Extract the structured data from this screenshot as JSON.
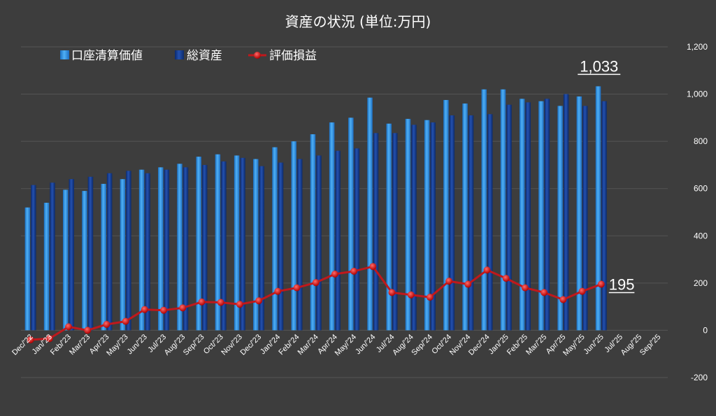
{
  "colors": {
    "background": "#3d3d3d",
    "gridline": "#555555",
    "account_value": "#2f8fe0",
    "total_assets": "#123a8c",
    "gain_loss": "#c0181c",
    "negative_tick": "#ff2a2a"
  },
  "chart_data": {
    "type": "bar",
    "title": "資産の状況 (単位:万円)",
    "ylim": [
      -200,
      1200
    ],
    "yticks": [
      "-200",
      "0",
      "200",
      "400",
      "600",
      "800",
      "1,000",
      "1,200"
    ],
    "grid": true,
    "legend_position": "top-left",
    "categories": [
      "Dec/'22",
      "Jan/'23",
      "Feb/'23",
      "Mar/'23",
      "Apr/'23",
      "May/'23",
      "Jun/'23",
      "Jul/'23",
      "Aug/'23",
      "Sep/'23",
      "Oct/'23",
      "Nov/'23",
      "Dec/'23",
      "Jan/'24",
      "Feb/'24",
      "Mar/'24",
      "Apr/'24",
      "May/'24",
      "Jun/'24",
      "Jul/'24",
      "Aug/'24",
      "Sep/'24",
      "Oct/'24",
      "Nov/'24",
      "Dec/'24",
      "Jan/'25",
      "Feb/'25",
      "Mar/'25",
      "Apr/'25",
      "May/'25",
      "Jun/'25",
      "Jul/'25",
      "Aug/'25",
      "Sep/'25"
    ],
    "series": [
      {
        "name": "口座清算価値",
        "type": "bar",
        "values": [
          520,
          540,
          595,
          590,
          620,
          640,
          680,
          690,
          705,
          735,
          745,
          740,
          725,
          775,
          800,
          830,
          880,
          900,
          985,
          875,
          895,
          890,
          975,
          960,
          1020,
          1020,
          980,
          970,
          950,
          990,
          1033,
          null,
          null,
          null
        ]
      },
      {
        "name": "総資産",
        "type": "bar",
        "values": [
          615,
          625,
          640,
          650,
          665,
          675,
          665,
          680,
          690,
          700,
          715,
          730,
          695,
          710,
          725,
          740,
          760,
          770,
          835,
          835,
          870,
          880,
          910,
          910,
          915,
          955,
          965,
          980,
          1000,
          950,
          970,
          null,
          null,
          null
        ]
      },
      {
        "name": "評価損益",
        "type": "line",
        "values": [
          -40,
          -35,
          15,
          0,
          25,
          38,
          88,
          85,
          95,
          120,
          118,
          110,
          125,
          165,
          180,
          202,
          238,
          250,
          270,
          160,
          150,
          140,
          208,
          195,
          255,
          220,
          180,
          160,
          130,
          165,
          195,
          null,
          null,
          null
        ]
      }
    ],
    "annotations": [
      {
        "text": "1,033",
        "series": "口座清算価値",
        "category": "Jun/'25"
      },
      {
        "text": "195",
        "series": "評価損益",
        "category": "Jun/'25"
      }
    ]
  }
}
